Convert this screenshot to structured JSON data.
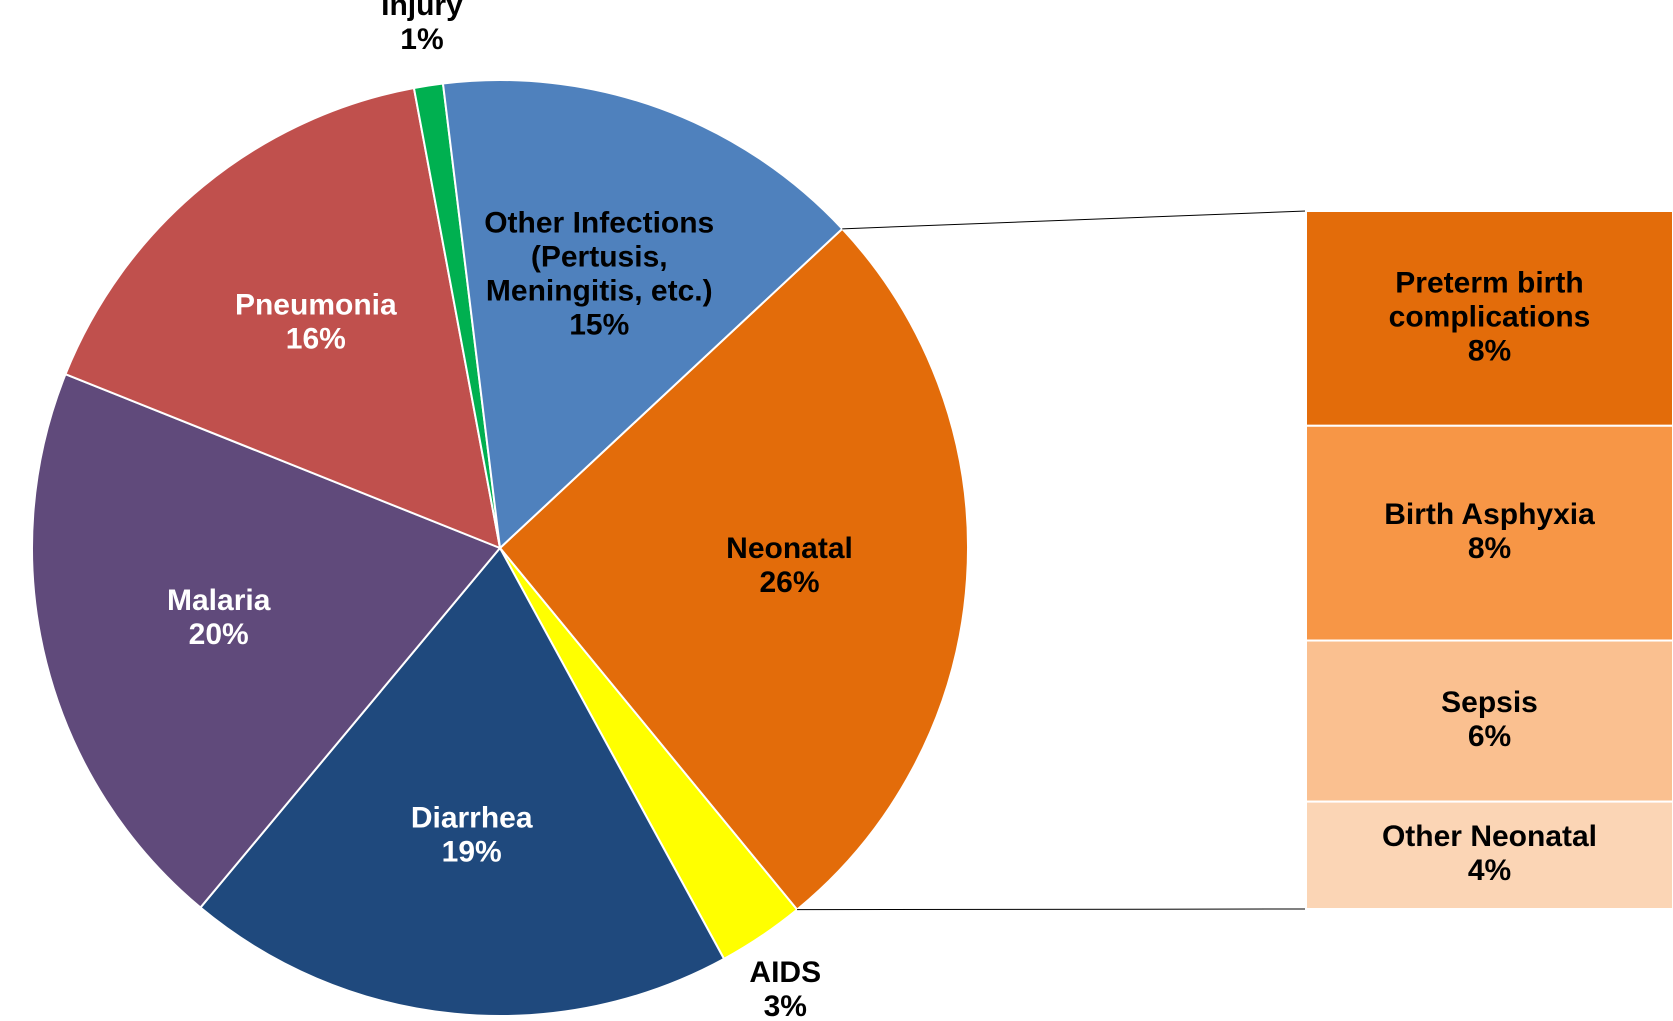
{
  "chart_data": {
    "type": "pie-of-bar",
    "categories": [
      "Neonatal",
      "AIDS",
      "Diarrhea",
      "Malaria",
      "Pneumonia",
      "Injury",
      "Other Infections\n(Pertusis,\nMeningitis, etc.)"
    ],
    "values": [
      26,
      3,
      19,
      20,
      16,
      1,
      15
    ],
    "value_labels": [
      "26%",
      "3%",
      "19%",
      "20%",
      "16%",
      "1%",
      "15%"
    ],
    "colors": [
      "#e36c0a",
      "#ffff00",
      "#1f497d",
      "#604a7b",
      "#c0504d",
      "#00b050",
      "#4f81bd"
    ],
    "breakdown": {
      "categories": [
        "Preterm birth\ncomplications",
        "Birth Asphyxia",
        "Sepsis",
        "Other Neonatal"
      ],
      "values": [
        8,
        8,
        6,
        4
      ],
      "value_labels": [
        "8%",
        "8%",
        "6%",
        "4%"
      ],
      "colors": [
        "#e36c0a",
        "#f79646",
        "#fac090",
        "#fbd5b5"
      ]
    }
  }
}
